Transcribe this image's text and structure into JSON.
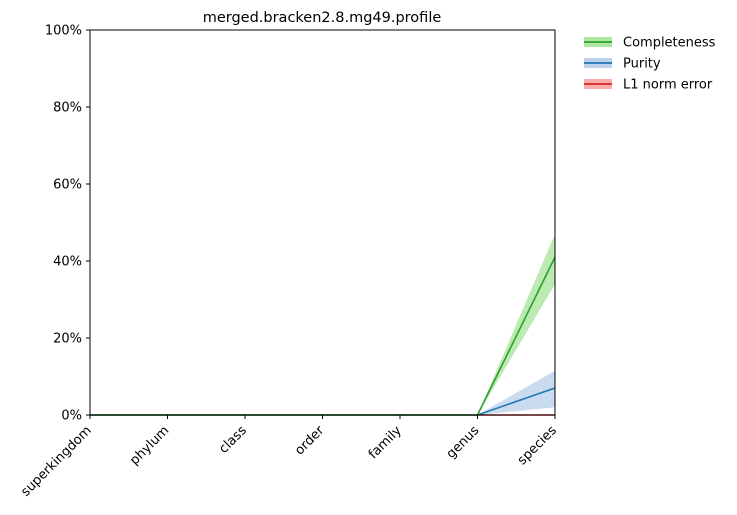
{
  "chart_data": {
    "type": "line",
    "title": "merged.bracken2.8.mg49.profile",
    "xlabel": "",
    "ylabel": "",
    "categories": [
      "superkingdom",
      "phylum",
      "class",
      "order",
      "family",
      "genus",
      "species"
    ],
    "ylim": [
      0,
      100
    ],
    "yticks": [
      "0%",
      "20%",
      "40%",
      "60%",
      "80%",
      "100%"
    ],
    "ytick_values": [
      0,
      20,
      40,
      60,
      80,
      100
    ],
    "grid": false,
    "legend_position": "outside-top-right",
    "series": [
      {
        "name": "Completeness",
        "color": "#2ca02c",
        "band_color": "#98df8a",
        "values": [
          0,
          0,
          0,
          0,
          0,
          0,
          41
        ],
        "lower": [
          0,
          0,
          0,
          0,
          0,
          0,
          34
        ],
        "upper": [
          0,
          0,
          0,
          0,
          0,
          0,
          47
        ]
      },
      {
        "name": "Purity",
        "color": "#1f77b4",
        "band_color": "#aec7e8",
        "values": [
          0,
          0,
          0,
          0,
          0,
          0,
          7
        ],
        "lower": [
          0,
          0,
          0,
          0,
          0,
          0,
          2
        ],
        "upper": [
          0,
          0,
          0,
          0,
          0,
          0,
          11.5
        ]
      },
      {
        "name": "L1 norm error",
        "color": "#d62728",
        "band_color": "#ff9896",
        "values": [
          0,
          0,
          0,
          0,
          0,
          0,
          0
        ],
        "lower": [
          0,
          0,
          0,
          0,
          0,
          0,
          0
        ],
        "upper": [
          0,
          0,
          0,
          0,
          0,
          0,
          0
        ]
      }
    ]
  }
}
